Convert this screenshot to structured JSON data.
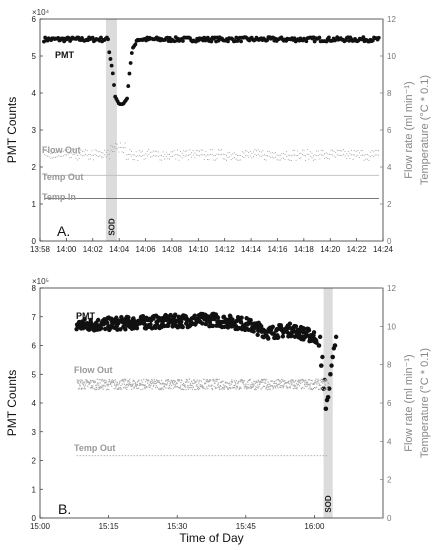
{
  "chart_data": [
    {
      "type": "scatter",
      "panel_label": "A.",
      "ylabel": "PMT Counts",
      "ylabel_right": "Flow rate (ml min⁻¹)\nTemperature (°C * 0.1)",
      "y_multiplier": "×10⁴",
      "ylim": [
        0,
        6
      ],
      "yticks": [
        "0",
        "1",
        "2",
        "3",
        "4",
        "5",
        "6"
      ],
      "ylim_right": [
        0,
        12
      ],
      "yticks_right": [
        "0",
        "2",
        "4",
        "6",
        "8",
        "10",
        "12"
      ],
      "xlim_minutes": [
        838,
        864
      ],
      "xtick_labels": [
        "13:58",
        "14:00",
        "14:02",
        "14:04",
        "14:06",
        "14:08",
        "14:10",
        "14:12",
        "14:14",
        "14:16",
        "14:18",
        "14:20",
        "14:22",
        "14:24"
      ],
      "sod_band": {
        "label": "SOD",
        "start": "14:03:00",
        "end": "14:03:50"
      },
      "series": [
        {
          "name": "PMT",
          "axis": "left",
          "style": "dots",
          "color": "#111111",
          "baseline": 5.45,
          "dip": [
            [
              843.2,
              5.2
            ],
            [
              843.5,
              4.6
            ],
            [
              843.7,
              3.9
            ],
            [
              844.0,
              3.7
            ],
            [
              844.3,
              3.7
            ],
            [
              844.6,
              3.85
            ],
            [
              844.8,
              4.6
            ],
            [
              845.0,
              5.2
            ],
            [
              845.3,
              5.35
            ]
          ]
        },
        {
          "name": "Flow Out",
          "axis": "right",
          "style": "grey-dots",
          "color": "#999999",
          "value": 4.8,
          "bump": [
            [
              843.3,
              5.2
            ],
            [
              844.5,
              5.2
            ]
          ]
        },
        {
          "name": "Temp Out",
          "axis": "right",
          "style": "line",
          "color": "#bbbbbb",
          "value": 3.55
        },
        {
          "name": "Temp In",
          "axis": "right",
          "style": "line",
          "color": "#666666",
          "value": 2.3
        }
      ]
    },
    {
      "type": "scatter",
      "panel_label": "B.",
      "xlabel": "Time of Day",
      "ylabel": "PMT Counts",
      "ylabel_right": "Flow rate (ml min⁻¹)\nTemperature (°C * 0.1)",
      "y_multiplier": "×10⁵",
      "ylim": [
        0,
        8
      ],
      "yticks": [
        "0",
        "1",
        "2",
        "3",
        "4",
        "5",
        "6",
        "7",
        "8"
      ],
      "ylim_right": [
        0,
        12
      ],
      "yticks_right": [
        "0",
        "2",
        "4",
        "6",
        "8",
        "10",
        "12"
      ],
      "xlim_minutes": [
        900,
        975
      ],
      "xtick_labels": [
        "15:00",
        "15:15",
        "15:30",
        "15:45",
        "16:00"
      ],
      "sod_band": {
        "label": "SOD",
        "start": "16:02",
        "end": "16:04"
      },
      "series": [
        {
          "name": "PMT",
          "axis": "left",
          "style": "dense-dots",
          "color": "#111111",
          "start": "15:08",
          "end": "16:04",
          "profile": [
            [
              908,
              6.7
            ],
            [
              915,
              6.75
            ],
            [
              922,
              6.8
            ],
            [
              930,
              6.85
            ],
            [
              938,
              6.9
            ],
            [
              945,
              6.75
            ],
            [
              950,
              6.45
            ],
            [
              955,
              6.55
            ],
            [
              960,
              6.3
            ]
          ],
          "tail": [
            [
              961,
              6.0
            ],
            [
              961.5,
              5.3
            ],
            [
              962,
              4.5
            ],
            [
              962.5,
              3.8
            ],
            [
              963,
              4.2
            ],
            [
              963.5,
              5.0
            ],
            [
              964,
              5.6
            ],
            [
              964.5,
              6.0
            ]
          ]
        },
        {
          "name": "Flow Out",
          "axis": "right",
          "style": "grey-band",
          "color": "#aaaaaa",
          "start": "15:08",
          "end": "16:03",
          "value": 7.0
        },
        {
          "name": "Temp Out",
          "axis": "right",
          "style": "dotted-line",
          "color": "#aaaaaa",
          "start": "15:08",
          "end": "16:03",
          "value": 3.25
        }
      ]
    }
  ]
}
